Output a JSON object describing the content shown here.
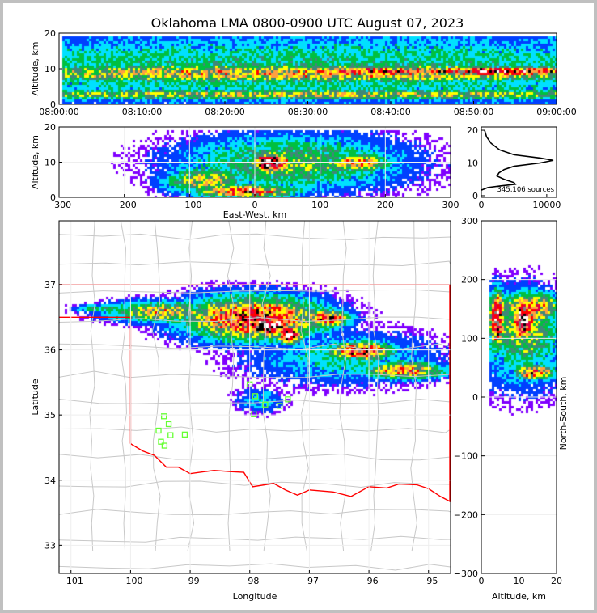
{
  "title": "Oklahoma LMA 0800-0900 UTC August 07, 2023",
  "chart_data": [
    {
      "name": "time-height",
      "type": "heatmap",
      "ylabel": "Altitude, km",
      "xlim": [
        0,
        60
      ],
      "ylim": [
        0,
        20
      ],
      "xticks": [
        "08:00:00",
        "08:10:00",
        "08:20:00",
        "08:30:00",
        "08:40:00",
        "08:50:00",
        "09:00:00"
      ],
      "yticks": [
        "0",
        "10",
        "20"
      ],
      "density_blobs": [
        [
          30,
          11,
          60,
          8,
          3.5
        ],
        [
          30,
          10,
          45,
          2.2,
          6
        ],
        [
          30,
          4,
          45,
          1.2,
          5.5
        ],
        [
          52,
          10.5,
          9,
          0.8,
          10
        ],
        [
          38,
          10.5,
          8,
          1,
          8
        ]
      ]
    },
    {
      "name": "east-west-height",
      "type": "heatmap",
      "xlabel": "East-West, km",
      "ylabel": "Altitude, km",
      "xlim": [
        -300,
        300
      ],
      "ylim": [
        0,
        20
      ],
      "xticks": [
        "−300",
        "−200",
        "−100",
        "0",
        "100",
        "200",
        "300"
      ],
      "yticks": [
        "0",
        "10",
        "20"
      ],
      "density_blobs": [
        [
          50,
          11,
          130,
          6,
          4.5
        ],
        [
          40,
          12,
          40,
          5,
          4.5
        ],
        [
          20,
          11,
          25,
          2,
          10
        ],
        [
          -20,
          3,
          60,
          1.5,
          7.5
        ],
        [
          -15,
          3,
          12,
          0.7,
          11
        ],
        [
          150,
          11,
          40,
          2,
          6.5
        ],
        [
          -80,
          6,
          50,
          3,
          5.5
        ]
      ]
    },
    {
      "name": "altitude-histogram",
      "type": "line",
      "xlim": [
        0,
        11500
      ],
      "ylim": [
        -0.5,
        21
      ],
      "xticks": [
        "0",
        "10000"
      ],
      "yticks": [
        "0",
        "10",
        "20"
      ],
      "annotation": "345,106 sources",
      "points": [
        [
          20,
          500
        ],
        [
          18,
          800
        ],
        [
          16,
          1500
        ],
        [
          14,
          2800
        ],
        [
          12.5,
          5000
        ],
        [
          11.5,
          9000
        ],
        [
          10.8,
          11000
        ],
        [
          10,
          9000
        ],
        [
          9,
          5000
        ],
        [
          8,
          3500
        ],
        [
          7,
          2700
        ],
        [
          6,
          2400
        ],
        [
          5,
          3500
        ],
        [
          4,
          5000
        ],
        [
          3.5,
          5200
        ],
        [
          3,
          3000
        ],
        [
          2.5,
          1000
        ],
        [
          1.7,
          0
        ]
      ]
    },
    {
      "name": "plan-view",
      "type": "heatmap",
      "xlabel": "Longitude",
      "ylabel": "Latitude",
      "xlim": [
        -101.2,
        -94.63
      ],
      "ylim": [
        32.57,
        37.98
      ],
      "xticks": [
        "−101",
        "−100",
        "−99",
        "−98",
        "−97",
        "−96",
        "−95"
      ],
      "yticks": [
        "33",
        "34",
        "35",
        "36",
        "37"
      ],
      "density_blobs": [
        [
          -99.5,
          36.65,
          0.7,
          0.12,
          6
        ],
        [
          -98,
          36.55,
          0.9,
          0.25,
          8
        ],
        [
          -97.75,
          36.45,
          0.3,
          0.12,
          11
        ],
        [
          -97.4,
          36.3,
          0.15,
          0.1,
          10.5
        ],
        [
          -96.8,
          36.55,
          0.3,
          0.1,
          8
        ],
        [
          -96.2,
          36.05,
          0.4,
          0.1,
          8.5
        ],
        [
          -95.5,
          35.75,
          0.5,
          0.1,
          7
        ],
        [
          -100.5,
          36.7,
          0.4,
          0.05,
          4
        ],
        [
          -96.5,
          35.95,
          1.2,
          0.3,
          3
        ],
        [
          -97.9,
          35.3,
          0.3,
          0.15,
          2.5
        ]
      ],
      "stations": [
        [
          -99.44,
          34.98
        ],
        [
          -99.36,
          34.86
        ],
        [
          -99.53,
          34.76
        ],
        [
          -99.33,
          34.69
        ],
        [
          -99.49,
          34.59
        ],
        [
          -99.43,
          34.53
        ],
        [
          -99.09,
          34.7
        ],
        [
          -98.0,
          35.47
        ],
        [
          -97.91,
          35.29
        ],
        [
          -97.74,
          35.16
        ],
        [
          -97.93,
          35.01
        ],
        [
          -97.5,
          35.14
        ],
        [
          -97.36,
          35.24
        ]
      ],
      "red_river": [
        [
          -100,
          34.56
        ],
        [
          -99.8,
          34.45
        ],
        [
          -99.6,
          34.38
        ],
        [
          -99.4,
          34.2
        ],
        [
          -99.2,
          34.2
        ],
        [
          -99,
          34.1
        ],
        [
          -98.6,
          34.15
        ],
        [
          -98.3,
          34.13
        ],
        [
          -98.1,
          34.12
        ],
        [
          -97.95,
          33.9
        ],
        [
          -97.6,
          33.95
        ],
        [
          -97.4,
          33.85
        ],
        [
          -97.2,
          33.77
        ],
        [
          -97.0,
          33.85
        ],
        [
          -96.6,
          33.82
        ],
        [
          -96.3,
          33.75
        ],
        [
          -96,
          33.9
        ],
        [
          -95.7,
          33.88
        ],
        [
          -95.5,
          33.94
        ],
        [
          -95.2,
          33.93
        ],
        [
          -95.0,
          33.87
        ],
        [
          -94.8,
          33.75
        ],
        [
          -94.63,
          33.67
        ]
      ]
    },
    {
      "name": "height-north-south",
      "type": "heatmap",
      "xlabel": "Altitude, km",
      "ylabel": "North-South, km",
      "xlim": [
        0,
        20
      ],
      "ylim": [
        -300,
        300
      ],
      "xticks": [
        "0",
        "10",
        "20"
      ],
      "yticks": [
        "−300",
        "−200",
        "−100",
        "0",
        "100",
        "200",
        "300"
      ],
      "density_blobs": [
        [
          10,
          120,
          8,
          50,
          5
        ],
        [
          10,
          140,
          2,
          25,
          11
        ],
        [
          3,
          140,
          1.5,
          35,
          9.5
        ],
        [
          13,
          50,
          4,
          10,
          7.5
        ],
        [
          10,
          100,
          10,
          60,
          3.5
        ],
        [
          12,
          160,
          6,
          20,
          7
        ]
      ]
    }
  ],
  "palette": [
    "#8000ff",
    "#0040ff",
    "#00e0ff",
    "#00c040",
    "#408878",
    "#ffff00",
    "#ffa040",
    "#ff0000",
    "#e00040",
    "#000000",
    "#808080",
    "#ffffff"
  ]
}
